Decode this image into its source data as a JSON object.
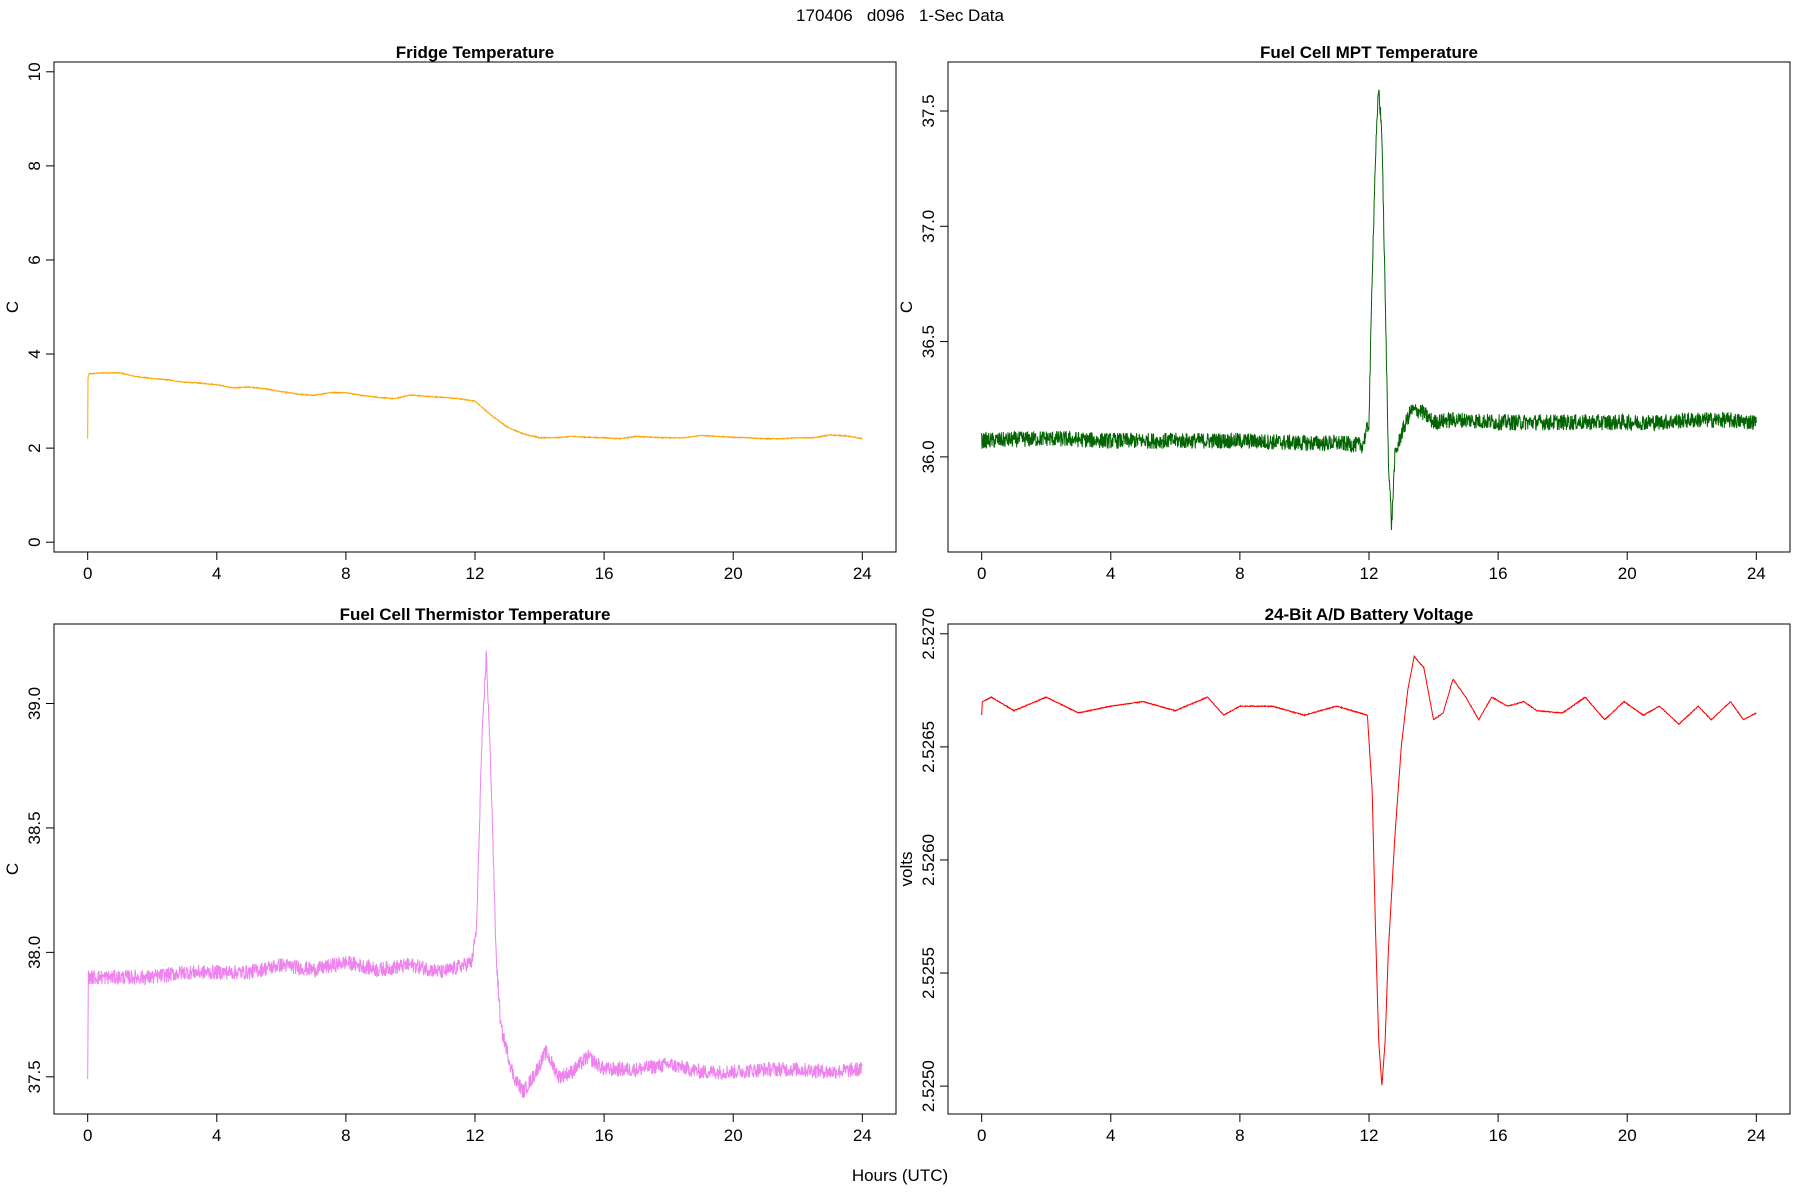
{
  "figure": {
    "title": "170406   d096   1-Sec Data",
    "xlabel": "Hours (UTC)"
  },
  "chart_data": [
    {
      "type": "line",
      "title": "Fridge Temperature",
      "ylabel": "C",
      "color": "#FFA500",
      "xlim": [
        0,
        24
      ],
      "ylim": [
        0,
        10
      ],
      "xticks": [
        0,
        4,
        8,
        12,
        16,
        20,
        24
      ],
      "yticks": [
        0,
        2,
        4,
        6,
        8,
        10
      ],
      "ytick_labels": [
        "0",
        "2",
        "4",
        "6",
        "8",
        "10"
      ],
      "noise": 0.02,
      "x": [
        0,
        0.01,
        0.05,
        0.5,
        1,
        1.5,
        2,
        2.5,
        3,
        3.5,
        4,
        4.5,
        5,
        5.5,
        6,
        6.5,
        7,
        7.5,
        8,
        8.5,
        9,
        9.5,
        10,
        10.5,
        11,
        11.5,
        12,
        12.5,
        13,
        13.5,
        14,
        14.5,
        15,
        15.5,
        16,
        16.5,
        17,
        17.5,
        18,
        18.5,
        19,
        19.5,
        20,
        20.5,
        21,
        21.5,
        22,
        22.5,
        23,
        23.5,
        24
      ],
      "y": [
        2.2,
        3.5,
        3.58,
        3.6,
        3.6,
        3.52,
        3.48,
        3.45,
        3.4,
        3.38,
        3.35,
        3.28,
        3.3,
        3.26,
        3.2,
        3.15,
        3.12,
        3.18,
        3.18,
        3.12,
        3.08,
        3.05,
        3.13,
        3.1,
        3.08,
        3.05,
        3.0,
        2.7,
        2.45,
        2.3,
        2.22,
        2.22,
        2.25,
        2.23,
        2.22,
        2.2,
        2.25,
        2.23,
        2.22,
        2.22,
        2.27,
        2.25,
        2.23,
        2.22,
        2.2,
        2.2,
        2.22,
        2.22,
        2.28,
        2.26,
        2.2
      ]
    },
    {
      "type": "line",
      "title": "Fuel Cell MPT Temperature",
      "ylabel": "C",
      "color": "#006400",
      "xlim": [
        0,
        24
      ],
      "ylim": [
        35.63,
        37.67
      ],
      "xticks": [
        0,
        4,
        8,
        12,
        16,
        20,
        24
      ],
      "yticks": [
        36.0,
        36.5,
        37.0,
        37.5
      ],
      "ytick_labels": [
        "36.0",
        "36.5",
        "37.0",
        "37.5"
      ],
      "noise": 0.07,
      "x": [
        0,
        2,
        4,
        6,
        8,
        10,
        11,
        11.8,
        12.0,
        12.1,
        12.2,
        12.3,
        12.4,
        12.5,
        12.6,
        12.7,
        12.8,
        13.0,
        13.3,
        13.6,
        14.0,
        14.5,
        15,
        16,
        17,
        18,
        19,
        20,
        21,
        22,
        23,
        24
      ],
      "y": [
        36.07,
        36.08,
        36.07,
        36.07,
        36.07,
        36.06,
        36.06,
        36.05,
        36.15,
        36.8,
        37.3,
        37.6,
        37.4,
        36.7,
        36.0,
        35.7,
        36.0,
        36.1,
        36.2,
        36.2,
        36.15,
        36.16,
        36.16,
        36.15,
        36.15,
        36.15,
        36.15,
        36.15,
        36.15,
        36.16,
        36.16,
        36.15
      ]
    },
    {
      "type": "line",
      "title": "Fuel Cell Thermistor Temperature",
      "ylabel": "C",
      "color": "#EE82EE",
      "xlim": [
        0,
        24
      ],
      "ylim": [
        37.39,
        39.28
      ],
      "xticks": [
        0,
        4,
        8,
        12,
        16,
        20,
        24
      ],
      "yticks": [
        37.5,
        38.0,
        38.5,
        39.0
      ],
      "ytick_labels": [
        "37.5",
        "38.0",
        "38.5",
        "39.0"
      ],
      "noise": 0.06,
      "x": [
        0,
        0.02,
        0.1,
        1,
        2,
        3,
        4,
        5,
        6,
        7,
        8,
        9,
        10,
        11,
        11.9,
        12.05,
        12.2,
        12.35,
        12.5,
        12.65,
        12.8,
        13.0,
        13.2,
        13.5,
        13.8,
        14.2,
        14.6,
        15.0,
        15.5,
        16,
        17,
        18,
        19,
        20,
        21,
        22,
        23,
        24
      ],
      "y": [
        37.52,
        37.9,
        37.9,
        37.9,
        37.9,
        37.92,
        37.92,
        37.92,
        37.95,
        37.93,
        37.96,
        37.93,
        37.95,
        37.92,
        37.96,
        38.1,
        38.8,
        39.2,
        38.7,
        38.0,
        37.7,
        37.6,
        37.5,
        37.44,
        37.5,
        37.6,
        37.5,
        37.52,
        37.58,
        37.53,
        37.53,
        37.55,
        37.52,
        37.52,
        37.53,
        37.53,
        37.52,
        37.53
      ]
    },
    {
      "type": "line",
      "title": "24-Bit A/D Battery Voltage",
      "ylabel": "volts",
      "color": "#FF0000",
      "xlim": [
        0,
        24
      ],
      "ylim": [
        2.52492,
        2.527
      ],
      "xticks": [
        0,
        4,
        8,
        12,
        16,
        20,
        24
      ],
      "yticks": [
        2.525,
        2.5255,
        2.526,
        2.5265,
        2.527
      ],
      "ytick_labels": [
        "2.5250",
        "2.5255",
        "2.5260",
        "2.5265",
        "2.5270"
      ],
      "noise": 4e-06,
      "x": [
        0,
        0.02,
        0.3,
        1,
        2,
        3,
        4,
        5,
        6,
        7,
        7.5,
        8,
        9,
        10,
        11,
        11.95,
        12.1,
        12.2,
        12.3,
        12.4,
        12.5,
        12.6,
        12.8,
        13.0,
        13.2,
        13.4,
        13.7,
        14.0,
        14.3,
        14.6,
        15.0,
        15.4,
        15.8,
        16.3,
        16.8,
        17.2,
        18,
        18.7,
        19.3,
        19.9,
        20.5,
        21,
        21.6,
        22.2,
        22.6,
        23.2,
        23.6,
        24
      ],
      "y": [
        2.52664,
        2.5267,
        2.52672,
        2.52666,
        2.52672,
        2.52665,
        2.52668,
        2.5267,
        2.52666,
        2.52672,
        2.52664,
        2.52668,
        2.52668,
        2.52664,
        2.52668,
        2.52664,
        2.5263,
        2.5257,
        2.5252,
        2.525,
        2.5252,
        2.5256,
        2.5261,
        2.5265,
        2.52675,
        2.5269,
        2.52685,
        2.52662,
        2.52665,
        2.5268,
        2.52672,
        2.52662,
        2.52672,
        2.52668,
        2.5267,
        2.52666,
        2.52665,
        2.52672,
        2.52662,
        2.5267,
        2.52664,
        2.52668,
        2.5266,
        2.52668,
        2.52662,
        2.5267,
        2.52662,
        2.52665
      ]
    }
  ]
}
